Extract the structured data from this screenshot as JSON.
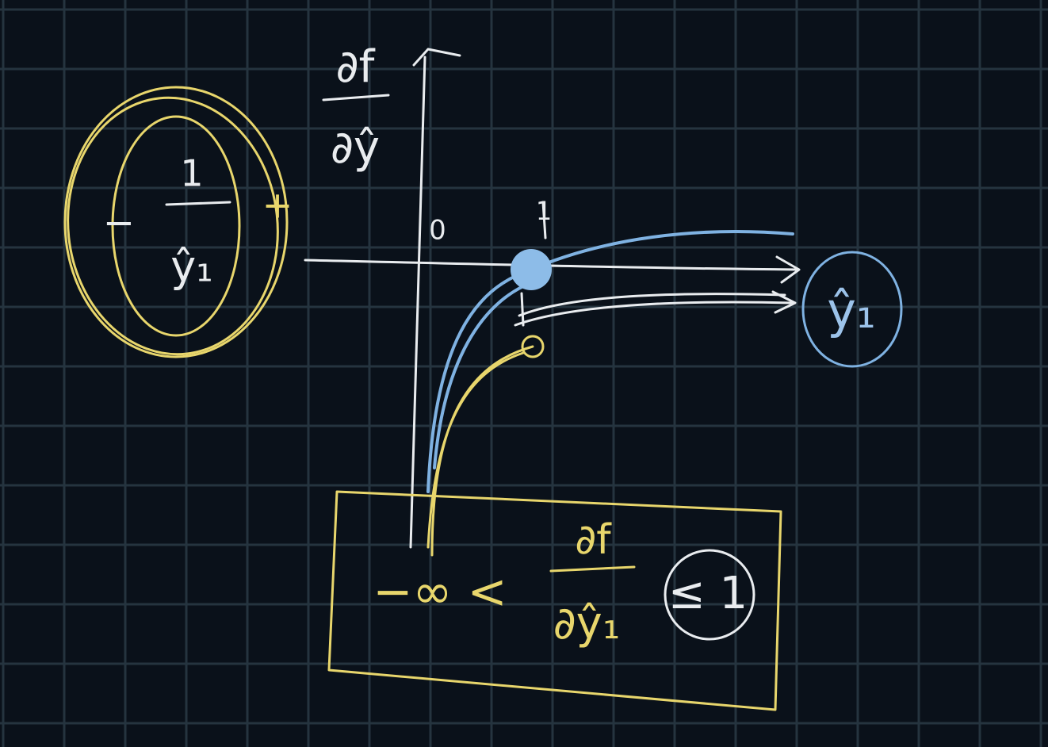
{
  "axes": {
    "y_label": {
      "numerator": "∂f",
      "denominator": "∂ŷ"
    },
    "origin_label": "0",
    "x_mark_label": "1",
    "x_label": "ŷ₁"
  },
  "annotations": {
    "derivative": {
      "sign": "−",
      "numerator": "1",
      "denominator": "ŷ₁",
      "sign_after": "+"
    },
    "bound": {
      "lower": "−∞ <",
      "numerator": "∂f",
      "denominator": "∂ŷ₁",
      "upper": "≤ 1"
    }
  }
}
